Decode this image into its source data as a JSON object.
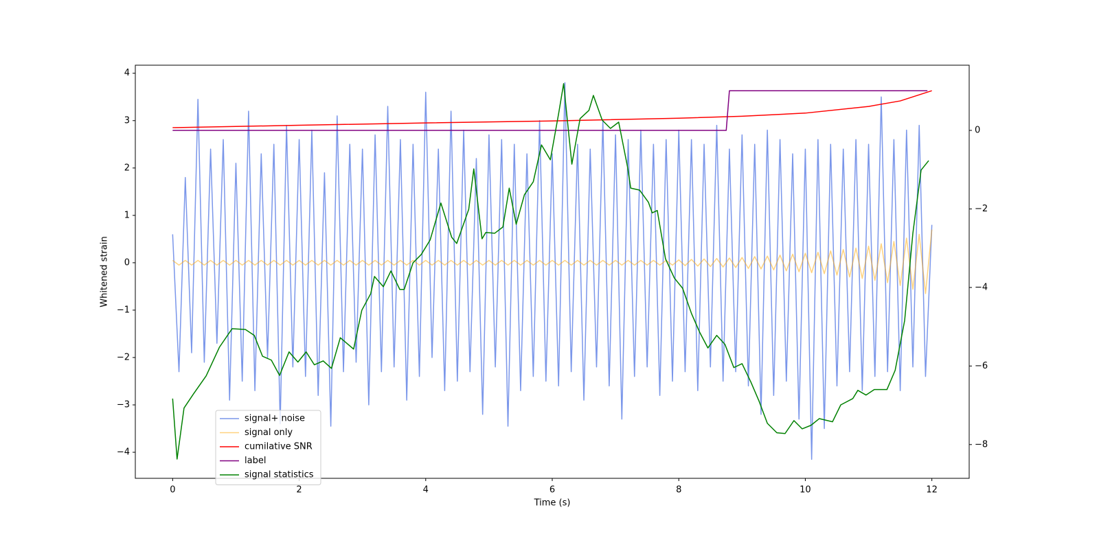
{
  "chart_data": {
    "type": "line",
    "xlabel": "Time (s)",
    "ylabel": "Whitened strain",
    "xlim": [
      -0.59,
      12.59
    ],
    "ylim": [
      -4.55,
      4.17
    ],
    "y2lim": [
      -8.86,
      1.66
    ],
    "xticks": [
      0,
      2,
      4,
      6,
      8,
      10,
      12
    ],
    "yticks": [
      {
        "value": -4,
        "label": "−4"
      },
      {
        "value": -3,
        "label": "−3"
      },
      {
        "value": -2,
        "label": "−2"
      },
      {
        "value": -1,
        "label": "−1"
      },
      0,
      1,
      2,
      3,
      4
    ],
    "y2ticks": [
      {
        "value": -8,
        "label": "−8"
      },
      {
        "value": -6,
        "label": "−6"
      },
      {
        "value": -4,
        "label": "−4"
      },
      {
        "value": -2,
        "label": "−2"
      },
      0
    ],
    "legend": "lower left",
    "x": [
      0,
      0.1,
      0.2,
      0.3,
      0.4,
      0.5,
      0.6,
      0.7,
      0.8,
      0.9,
      1,
      1.1,
      1.2,
      1.3,
      1.4,
      1.5,
      1.6,
      1.7,
      1.8,
      1.9,
      2,
      2.1,
      2.2,
      2.3,
      2.4,
      2.5,
      2.6,
      2.7,
      2.8,
      2.9,
      3,
      3.1,
      3.2,
      3.3,
      3.4,
      3.5,
      3.6,
      3.7,
      3.8,
      3.9,
      4,
      4.1,
      4.2,
      4.3,
      4.4,
      4.5,
      4.6,
      4.7,
      4.8,
      4.9,
      5,
      5.1,
      5.2,
      5.3,
      5.4,
      5.5,
      5.6,
      5.7,
      5.8,
      5.9,
      6,
      6.1,
      6.2,
      6.3,
      6.4,
      6.5,
      6.6,
      6.7,
      6.8,
      6.9,
      7,
      7.1,
      7.2,
      7.3,
      7.4,
      7.5,
      7.6,
      7.7,
      7.8,
      7.9,
      8,
      8.1,
      8.2,
      8.3,
      8.4,
      8.5,
      8.6,
      8.7,
      8.8,
      8.9,
      9,
      9.1,
      9.2,
      9.3,
      9.4,
      9.5,
      9.6,
      9.7,
      9.8,
      9.9,
      10,
      10.1,
      10.2,
      10.3,
      10.4,
      10.5,
      10.6,
      10.7,
      10.8,
      10.9,
      11,
      11.1,
      11.2,
      11.3,
      11.4,
      11.5,
      11.6,
      11.7,
      11.8,
      11.9,
      12
    ],
    "series": [
      {
        "name": "signal+ noise",
        "color": "#4169e1",
        "alpha": 0.7,
        "values": [
          0.6,
          -2.3,
          1.8,
          -1.9,
          3.45,
          -2.1,
          2.4,
          -1.7,
          2.6,
          -2.9,
          2.1,
          -2.5,
          3.2,
          -2.7,
          2.3,
          -2.0,
          2.5,
          -3.4,
          2.9,
          -2.2,
          2.6,
          -2.4,
          2.8,
          -2.8,
          1.9,
          -3.45,
          3.1,
          -2.3,
          2.5,
          -2.1,
          2.4,
          -3.0,
          2.7,
          -2.3,
          3.3,
          -2.2,
          2.6,
          -2.9,
          2.5,
          -2.4,
          3.6,
          -2.0,
          2.4,
          -2.7,
          3.2,
          -2.5,
          2.8,
          -2.3,
          2.2,
          -3.2,
          2.7,
          -2.2,
          2.6,
          -3.45,
          2.5,
          -2.7,
          2.3,
          -2.4,
          3.0,
          -2.5,
          2.3,
          -2.6,
          3.8,
          -2.3,
          2.5,
          -2.9,
          2.4,
          -2.2,
          3.0,
          -2.6,
          2.7,
          -3.3,
          2.6,
          -2.4,
          2.8,
          -2.2,
          2.5,
          -2.8,
          2.6,
          -2.5,
          2.8,
          -2.3,
          2.6,
          -2.7,
          2.5,
          -2.2,
          2.9,
          -2.5,
          2.4,
          -2.3,
          2.7,
          -2.6,
          2.5,
          -3.2,
          2.8,
          -2.8,
          2.6,
          -2.5,
          2.3,
          -3.3,
          2.4,
          -4.15,
          2.6,
          -3.5,
          2.5,
          -2.6,
          2.4,
          -2.3,
          2.6,
          -2.7,
          2.5,
          -2.4,
          3.5,
          -2.3,
          2.6,
          -2.7,
          2.8,
          -2.2,
          2.9,
          -2.4,
          0.8
        ]
      },
      {
        "name": "signal only",
        "color": "#ffa500",
        "alpha": 0.5,
        "values": [
          0.05,
          -0.05,
          0.05,
          -0.05,
          0.05,
          -0.05,
          0.05,
          -0.05,
          0.05,
          -0.05,
          0.05,
          -0.05,
          0.05,
          -0.05,
          0.05,
          -0.05,
          0.05,
          -0.05,
          0.05,
          -0.05,
          0.05,
          -0.05,
          0.05,
          -0.05,
          0.05,
          -0.05,
          0.05,
          -0.05,
          0.05,
          -0.05,
          0.05,
          -0.05,
          0.05,
          -0.05,
          0.05,
          -0.05,
          0.05,
          -0.05,
          0.05,
          -0.05,
          0.05,
          -0.05,
          0.05,
          -0.05,
          0.05,
          -0.05,
          0.05,
          -0.05,
          0.05,
          -0.05,
          0.05,
          -0.05,
          0.05,
          -0.05,
          0.05,
          -0.05,
          0.05,
          -0.05,
          0.05,
          -0.05,
          0.05,
          -0.05,
          0.05,
          -0.05,
          0.05,
          -0.05,
          0.05,
          -0.05,
          0.05,
          -0.05,
          0.05,
          -0.05,
          0.05,
          -0.05,
          0.05,
          -0.05,
          0.05,
          -0.05,
          0.05,
          -0.05,
          0.06,
          -0.06,
          0.07,
          -0.07,
          0.08,
          -0.08,
          0.09,
          -0.09,
          0.1,
          -0.1,
          0.11,
          -0.12,
          0.13,
          -0.13,
          0.14,
          -0.15,
          0.16,
          -0.17,
          0.18,
          -0.19,
          0.2,
          -0.21,
          0.22,
          -0.23,
          0.25,
          -0.26,
          0.28,
          -0.3,
          0.31,
          -0.33,
          0.35,
          -0.37,
          0.4,
          -0.42,
          0.45,
          -0.48,
          0.52,
          -0.56,
          0.6,
          -0.65,
          0.7
        ]
      },
      {
        "name": "cumilative SNR",
        "color": "#ff0000",
        "axis": "y2",
        "x": [
          0,
          2,
          4,
          6,
          8,
          9,
          10,
          11,
          11.5,
          12
        ],
        "values": [
          0.07,
          0.13,
          0.19,
          0.24,
          0.31,
          0.36,
          0.44,
          0.61,
          0.75,
          1.01
        ]
      },
      {
        "name": "label",
        "color": "#800080",
        "axis": "y2",
        "x": [
          0,
          8.75,
          8.8,
          11.93
        ],
        "values": [
          0,
          0,
          1.01,
          1.01
        ]
      },
      {
        "name": "signal statistics",
        "color": "#008000",
        "axis": "y2",
        "x": [
          0,
          0.07,
          0.18,
          0.33,
          0.53,
          0.74,
          0.94,
          1.15,
          1.29,
          1.42,
          1.56,
          1.69,
          1.84,
          1.98,
          2.11,
          2.24,
          2.38,
          2.51,
          2.65,
          2.86,
          2.99,
          3.13,
          3.19,
          3.33,
          3.45,
          3.59,
          3.66,
          3.8,
          3.93,
          4.07,
          4.24,
          4.41,
          4.49,
          4.68,
          4.76,
          4.89,
          4.95,
          5.09,
          5.22,
          5.32,
          5.43,
          5.56,
          5.7,
          5.83,
          5.97,
          6.1,
          6.18,
          6.31,
          6.44,
          6.58,
          6.65,
          6.79,
          6.92,
          7.05,
          7.19,
          7.24,
          7.38,
          7.52,
          7.58,
          7.66,
          7.79,
          7.93,
          8.06,
          8.2,
          8.33,
          8.46,
          8.6,
          8.73,
          8.87,
          9,
          9.14,
          9.27,
          9.4,
          9.55,
          9.68,
          9.82,
          9.95,
          10.09,
          10.22,
          10.43,
          10.56,
          10.75,
          10.83,
          10.96,
          11.09,
          11.29,
          11.42,
          11.57,
          11.7,
          11.83,
          11.95
        ],
        "values": [
          -6.83,
          -8.37,
          -7.07,
          -6.71,
          -6.25,
          -5.52,
          -5.05,
          -5.07,
          -5.22,
          -5.75,
          -5.85,
          -6.24,
          -5.64,
          -5.9,
          -5.64,
          -5.97,
          -5.87,
          -6.06,
          -5.28,
          -5.57,
          -4.58,
          -4.16,
          -3.72,
          -3.98,
          -3.58,
          -4.05,
          -4.05,
          -3.37,
          -3.16,
          -2.79,
          -1.85,
          -2.72,
          -2.88,
          -2.01,
          -0.98,
          -2.76,
          -2.6,
          -2.62,
          -2.46,
          -1.47,
          -2.39,
          -1.64,
          -1.31,
          -0.37,
          -0.75,
          0.42,
          1.19,
          -0.86,
          0.3,
          0.51,
          0.89,
          0.26,
          0.05,
          0.21,
          -0.93,
          -1.47,
          -1.52,
          -1.83,
          -2.1,
          -2.04,
          -3.27,
          -3.76,
          -4.02,
          -4.66,
          -5.14,
          -5.54,
          -5.22,
          -5.45,
          -6.04,
          -5.94,
          -6.41,
          -6.9,
          -7.46,
          -7.7,
          -7.72,
          -7.39,
          -7.6,
          -7.51,
          -7.34,
          -7.42,
          -6.99,
          -6.83,
          -6.62,
          -6.74,
          -6.6,
          -6.6,
          -6.11,
          -4.84,
          -2.62,
          -1.01,
          -0.77
        ]
      }
    ]
  }
}
